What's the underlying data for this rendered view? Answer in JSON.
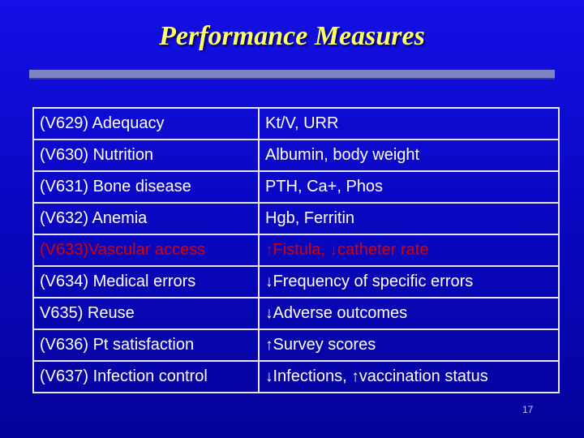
{
  "slide": {
    "title": "Performance Measures",
    "page_number": "17"
  },
  "table": {
    "rows": [
      {
        "measure": "(V629) Adequacy",
        "indicator": "Kt/V, URR"
      },
      {
        "measure": "(V630) Nutrition",
        "indicator": "Albumin, body weight"
      },
      {
        "measure": "(V631) Bone disease",
        "indicator": "PTH, Ca+, Phos"
      },
      {
        "measure": "(V632) Anemia",
        "indicator": "Hgb, Ferritin"
      },
      {
        "measure": "(V633)Vascular access",
        "a1": "↑",
        "indicator": "Fistula, ",
        "a2": "↓",
        "indicator2": "catheter rate"
      },
      {
        "measure": "(V634) Medical errors",
        "a1": "↓",
        "indicator": "Frequency of specific errors"
      },
      {
        "measure": "V635) Reuse",
        "a1": "↓",
        "indicator": "Adverse outcomes"
      },
      {
        "measure": "(V636) Pt satisfaction",
        "a1": "↑",
        "indicator": "Survey scores"
      },
      {
        "measure": "(V637) Infection control",
        "a1": "↓",
        "indicator": "Infections, ",
        "a2": "↑",
        "indicator2": "vaccination status"
      }
    ]
  },
  "colors": {
    "background": "#0a08c4",
    "title": "#ffff66",
    "text": "#ffffff",
    "highlight_row": "#d80000"
  }
}
